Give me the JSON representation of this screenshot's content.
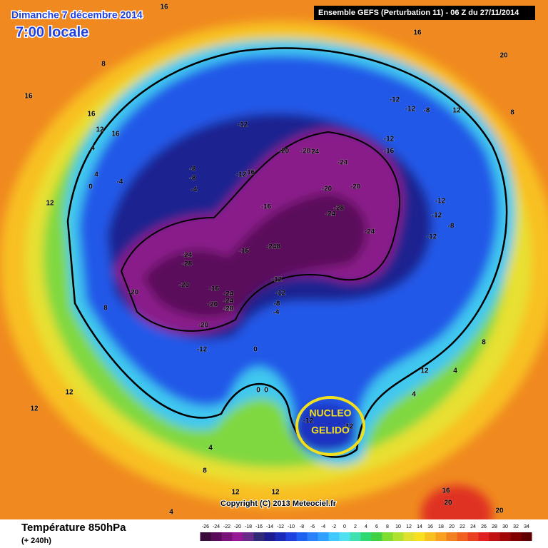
{
  "header": {
    "date": "Dimanche 7 décembre 2014",
    "time": "7:00 locale",
    "model": "Ensemble GEFS (Perturbation 11)  -  06 Z du 27/11/2014"
  },
  "footer": {
    "title": "Température 850hPa",
    "range": "(+ 240h)",
    "copyright": "Copyright (C) 2013 Meteociel.fr"
  },
  "annotation": {
    "line1": "NUCLEO",
    "line2": "GELIDO"
  },
  "legend": {
    "ticks": [
      -26,
      -24,
      -22,
      -20,
      -18,
      -16,
      -14,
      -12,
      -10,
      -8,
      -6,
      -4,
      -2,
      0,
      2,
      4,
      6,
      8,
      10,
      12,
      14,
      16,
      18,
      20,
      22,
      24,
      26,
      28,
      30,
      32,
      34
    ],
    "colors": [
      "#3a0a3a",
      "#5a0a5a",
      "#7a107a",
      "#961896",
      "#6a2a8a",
      "#302878",
      "#1c1c90",
      "#1a2ab8",
      "#1e40e0",
      "#2060f0",
      "#2a80f8",
      "#30a0ff",
      "#40c8ff",
      "#50e0f0",
      "#40e0b0",
      "#30d870",
      "#40d040",
      "#80dc30",
      "#b0e030",
      "#e0e030",
      "#f8e020",
      "#f8c020",
      "#f8a020",
      "#f08020",
      "#f06020",
      "#e84020",
      "#e02020",
      "#c01010",
      "#a00808",
      "#800000",
      "#600000"
    ]
  },
  "map": {
    "labels": [
      "16",
      "8",
      "16",
      "12",
      "16",
      "4",
      "4",
      "0",
      "-4",
      "-4",
      "-8",
      "-8",
      "-12",
      "-16",
      "-20",
      "-20",
      "-24",
      "-24",
      "-20",
      "-16",
      "-20",
      "-24",
      "-28",
      "-24",
      "-28",
      "-24",
      "-248",
      "-24",
      "-28",
      "-20",
      "-16",
      "-20",
      "-20",
      "-24",
      "-28",
      "-20",
      "-16",
      "-12",
      "-12",
      "-8",
      "-4",
      "-12",
      "-12",
      "-12",
      "-8",
      "-12",
      "-16",
      "-12",
      "-12",
      "-12",
      "-8",
      "-12",
      "0",
      "0",
      "0",
      "4",
      "8",
      "8",
      "12",
      "12",
      "8",
      "4",
      "16",
      "16",
      "12",
      "16",
      "20",
      "12",
      "12",
      "8",
      "4",
      "4",
      "20",
      "20",
      "12",
      "12",
      "-12",
      "-12"
    ]
  }
}
